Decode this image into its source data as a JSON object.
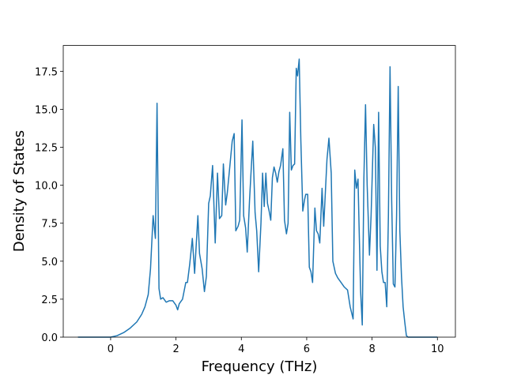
{
  "chart_data": {
    "type": "line",
    "xlabel": "Frequency (THz)",
    "ylabel": "Density of States",
    "x": [
      -1,
      -0.5,
      0,
      0.2,
      0.4,
      0.6,
      0.8,
      0.95,
      1.05,
      1.15,
      1.22,
      1.3,
      1.37,
      1.42,
      1.48,
      1.53,
      1.6,
      1.7,
      1.8,
      1.9,
      2.0,
      2.05,
      2.1,
      2.2,
      2.3,
      2.35,
      2.42,
      2.5,
      2.57,
      2.67,
      2.72,
      2.8,
      2.87,
      2.93,
      3.0,
      3.05,
      3.12,
      3.2,
      3.27,
      3.33,
      3.4,
      3.45,
      3.52,
      3.57,
      3.65,
      3.72,
      3.78,
      3.83,
      3.9,
      3.95,
      4.02,
      4.07,
      4.13,
      4.18,
      4.25,
      4.3,
      4.35,
      4.42,
      4.47,
      4.53,
      4.6,
      4.65,
      4.7,
      4.75,
      4.8,
      4.85,
      4.9,
      4.95,
      5.0,
      5.05,
      5.1,
      5.15,
      5.2,
      5.27,
      5.32,
      5.38,
      5.43,
      5.48,
      5.53,
      5.58,
      5.63,
      5.68,
      5.72,
      5.77,
      5.82,
      5.88,
      5.93,
      5.97,
      6.03,
      6.08,
      6.13,
      6.18,
      6.25,
      6.3,
      6.35,
      6.4,
      6.47,
      6.52,
      6.57,
      6.62,
      6.68,
      6.75,
      6.8,
      6.88,
      6.95,
      7.05,
      7.15,
      7.25,
      7.33,
      7.42,
      7.47,
      7.52,
      7.57,
      7.6,
      7.65,
      7.7,
      7.75,
      7.8,
      7.85,
      7.92,
      7.97,
      8.05,
      8.1,
      8.15,
      8.2,
      8.25,
      8.3,
      8.35,
      8.4,
      8.45,
      8.5,
      8.55,
      8.6,
      8.65,
      8.7,
      8.75,
      8.8,
      8.85,
      8.9,
      8.95,
      9.0,
      9.05,
      9.1,
      9.5,
      10
    ],
    "series": [
      {
        "name": "DOS",
        "color": "#1f77b4",
        "values": [
          0,
          0,
          0,
          0.1,
          0.3,
          0.6,
          1.0,
          1.5,
          2.0,
          2.8,
          4.5,
          8.0,
          6.5,
          15.4,
          3.2,
          2.5,
          2.6,
          2.3,
          2.4,
          2.4,
          2.1,
          1.8,
          2.2,
          2.5,
          3.6,
          3.6,
          4.8,
          6.5,
          4.2,
          8.0,
          5.5,
          4.5,
          3.0,
          4.0,
          8.8,
          9.3,
          11.3,
          6.2,
          10.8,
          7.8,
          8.0,
          11.4,
          8.7,
          9.5,
          11.3,
          12.9,
          13.4,
          7.0,
          7.3,
          7.7,
          14.3,
          8.0,
          7.2,
          5.6,
          9.0,
          11.0,
          12.9,
          8.2,
          7.0,
          4.3,
          7.5,
          10.8,
          8.6,
          10.8,
          8.8,
          8.3,
          7.7,
          10.5,
          11.2,
          10.8,
          10.2,
          10.9,
          11.3,
          12.4,
          7.7,
          6.8,
          7.5,
          14.8,
          11.0,
          11.3,
          11.4,
          17.7,
          17.2,
          18.3,
          13.0,
          8.3,
          9.0,
          9.4,
          9.4,
          4.6,
          4.3,
          3.6,
          8.5,
          7.0,
          6.8,
          6.2,
          9.8,
          7.3,
          9.5,
          11.7,
          13.1,
          10.8,
          5.0,
          4.2,
          3.9,
          3.6,
          3.3,
          3.1,
          2.0,
          1.2,
          11.0,
          9.8,
          10.4,
          7.5,
          3.0,
          0.8,
          10.5,
          15.3,
          10.0,
          5.4,
          8.0,
          14.0,
          12.5,
          4.4,
          14.8,
          6.0,
          4.3,
          3.6,
          3.6,
          2.0,
          8.0,
          17.8,
          9.0,
          3.5,
          3.3,
          8.0,
          16.5,
          7.0,
          4.0,
          2.0,
          1.0,
          0.1,
          0,
          0,
          0
        ]
      }
    ],
    "xlim": [
      -1.45,
      10.55
    ],
    "xticks": [
      0,
      2,
      4,
      6,
      8,
      10
    ],
    "ylim": [
      0,
      19.2
    ],
    "yticks": [
      {
        "value": 0,
        "label": "0.0"
      },
      2.5,
      {
        "value": 5,
        "label": "5.0"
      },
      7.5,
      {
        "value": 10,
        "label": "10.0"
      },
      12.5,
      {
        "value": 15,
        "label": "15.0"
      },
      17.5
    ]
  }
}
